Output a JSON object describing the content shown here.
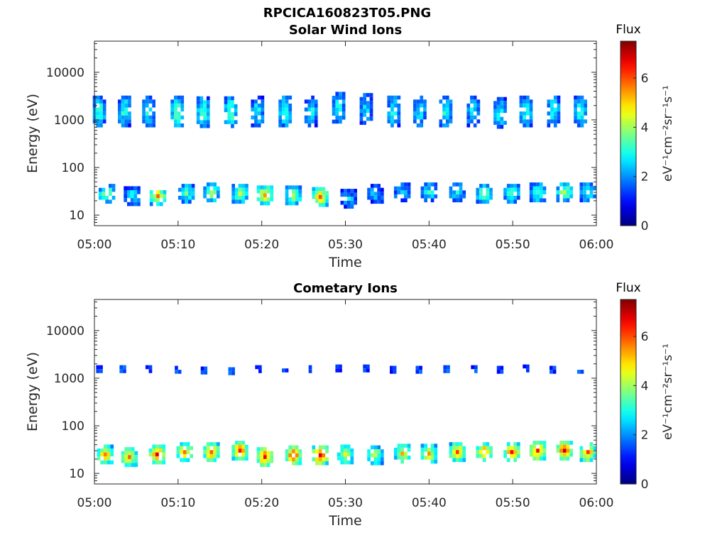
{
  "figure": {
    "title": "RPCICA160823T05.PNG"
  },
  "chart_data": [
    {
      "type": "heatmap",
      "title": "Solar Wind Ions",
      "xlabel": "Time",
      "ylabel": "Energy (eV)",
      "x_ticks": [
        "05:00",
        "05:10",
        "05:20",
        "05:30",
        "05:40",
        "05:50",
        "06:00"
      ],
      "x_range_minutes": [
        0,
        60
      ],
      "yscale": "log",
      "y_ticks": [
        10,
        100,
        1000,
        10000
      ],
      "y_tick_labels": [
        "10",
        "100",
        "1000",
        "10000"
      ],
      "ylim": [
        6,
        45000
      ],
      "colorbar": {
        "title": "Flux",
        "label": "eV⁻¹cm⁻²sr⁻¹s⁻¹",
        "ticks": [
          0,
          2,
          4,
          6
        ],
        "range": [
          0,
          7.5
        ],
        "colormap": "jet"
      },
      "blobs": [
        {
          "t": 0.6,
          "e": 1500,
          "flux": 3.2
        },
        {
          "t": 3.6,
          "e": 1500,
          "flux": 3.2
        },
        {
          "t": 6.5,
          "e": 1500,
          "flux": 3.0
        },
        {
          "t": 9.9,
          "e": 1500,
          "flux": 3.6
        },
        {
          "t": 13.0,
          "e": 1450,
          "flux": 3.6
        },
        {
          "t": 16.3,
          "e": 1450,
          "flux": 3.6
        },
        {
          "t": 19.5,
          "e": 1500,
          "flux": 3.0
        },
        {
          "t": 22.8,
          "e": 1500,
          "flux": 3.4
        },
        {
          "t": 25.9,
          "e": 1500,
          "flux": 3.0
        },
        {
          "t": 29.2,
          "e": 1800,
          "flux": 3.0
        },
        {
          "t": 32.5,
          "e": 1700,
          "flux": 2.6
        },
        {
          "t": 35.8,
          "e": 1500,
          "flux": 3.2
        },
        {
          "t": 38.9,
          "e": 1500,
          "flux": 3.0
        },
        {
          "t": 42.0,
          "e": 1500,
          "flux": 3.2
        },
        {
          "t": 45.3,
          "e": 1500,
          "flux": 3.0
        },
        {
          "t": 48.5,
          "e": 1400,
          "flux": 3.0
        },
        {
          "t": 51.6,
          "e": 1500,
          "flux": 3.2
        },
        {
          "t": 54.9,
          "e": 1500,
          "flux": 3.2
        },
        {
          "t": 58.1,
          "e": 1500,
          "flux": 3.2
        },
        {
          "t": 1.5,
          "e": 28,
          "flux": 3.8
        },
        {
          "t": 4.5,
          "e": 25,
          "flux": 2.8
        },
        {
          "t": 7.6,
          "e": 25,
          "flux": 5.2
        },
        {
          "t": 11.0,
          "e": 28,
          "flux": 3.4
        },
        {
          "t": 14.0,
          "e": 30,
          "flux": 4.0
        },
        {
          "t": 17.4,
          "e": 28,
          "flux": 4.0
        },
        {
          "t": 20.4,
          "e": 26,
          "flux": 5.0
        },
        {
          "t": 23.8,
          "e": 26,
          "flux": 4.2
        },
        {
          "t": 27.0,
          "e": 24,
          "flux": 5.4
        },
        {
          "t": 30.4,
          "e": 22,
          "flux": 2.4
        },
        {
          "t": 33.6,
          "e": 28,
          "flux": 2.4
        },
        {
          "t": 36.8,
          "e": 30,
          "flux": 2.6
        },
        {
          "t": 40.0,
          "e": 30,
          "flux": 3.0
        },
        {
          "t": 43.4,
          "e": 30,
          "flux": 3.0
        },
        {
          "t": 46.6,
          "e": 28,
          "flux": 3.6
        },
        {
          "t": 49.9,
          "e": 28,
          "flux": 3.4
        },
        {
          "t": 53.0,
          "e": 30,
          "flux": 3.4
        },
        {
          "t": 56.2,
          "e": 30,
          "flux": 4.0
        },
        {
          "t": 59.0,
          "e": 30,
          "flux": 3.4
        }
      ]
    },
    {
      "type": "heatmap",
      "title": "Cometary Ions",
      "xlabel": "Time",
      "ylabel": "Energy (eV)",
      "x_ticks": [
        "05:00",
        "05:10",
        "05:20",
        "05:30",
        "05:40",
        "05:50",
        "06:00"
      ],
      "x_range_minutes": [
        0,
        60
      ],
      "yscale": "log",
      "y_ticks": [
        10,
        100,
        1000,
        10000
      ],
      "y_tick_labels": [
        "10",
        "100",
        "1000",
        "10000"
      ],
      "ylim": [
        6,
        45000
      ],
      "colorbar": {
        "title": "Flux",
        "label": "eV⁻¹cm⁻²sr⁻¹s⁻¹",
        "ticks": [
          0,
          2,
          4,
          6
        ],
        "range": [
          0,
          7.5
        ],
        "colormap": "jet"
      },
      "blobs": [
        {
          "t": 0.6,
          "e": 1550,
          "flux": 2.2
        },
        {
          "t": 3.4,
          "e": 1550,
          "flux": 2.2
        },
        {
          "t": 6.5,
          "e": 1550,
          "flux": 2.2
        },
        {
          "t": 10.0,
          "e": 1500,
          "flux": 2.0
        },
        {
          "t": 13.1,
          "e": 1450,
          "flux": 2.0
        },
        {
          "t": 16.4,
          "e": 1400,
          "flux": 2.0
        },
        {
          "t": 19.6,
          "e": 1550,
          "flux": 2.0
        },
        {
          "t": 22.8,
          "e": 1600,
          "flux": 2.0
        },
        {
          "t": 26.0,
          "e": 1550,
          "flux": 2.0
        },
        {
          "t": 29.2,
          "e": 1600,
          "flux": 2.0
        },
        {
          "t": 32.5,
          "e": 1600,
          "flux": 2.0
        },
        {
          "t": 35.7,
          "e": 1500,
          "flux": 1.8
        },
        {
          "t": 38.8,
          "e": 1500,
          "flux": 2.0
        },
        {
          "t": 42.1,
          "e": 1550,
          "flux": 2.0
        },
        {
          "t": 45.4,
          "e": 1550,
          "flux": 2.0
        },
        {
          "t": 48.5,
          "e": 1500,
          "flux": 1.8
        },
        {
          "t": 51.6,
          "e": 1600,
          "flux": 2.0
        },
        {
          "t": 54.8,
          "e": 1500,
          "flux": 2.0
        },
        {
          "t": 58.1,
          "e": 1500,
          "flux": 2.0
        },
        {
          "t": 1.3,
          "e": 25,
          "flux": 5.4
        },
        {
          "t": 4.2,
          "e": 22,
          "flux": 5.2
        },
        {
          "t": 7.5,
          "e": 25,
          "flux": 6.0
        },
        {
          "t": 10.8,
          "e": 28,
          "flux": 5.4
        },
        {
          "t": 14.0,
          "e": 28,
          "flux": 5.6
        },
        {
          "t": 17.4,
          "e": 30,
          "flux": 5.8
        },
        {
          "t": 20.4,
          "e": 22,
          "flux": 6.0
        },
        {
          "t": 23.8,
          "e": 24,
          "flux": 6.2
        },
        {
          "t": 27.0,
          "e": 24,
          "flux": 6.4
        },
        {
          "t": 30.0,
          "e": 25,
          "flux": 4.6
        },
        {
          "t": 33.6,
          "e": 24,
          "flux": 4.2
        },
        {
          "t": 36.8,
          "e": 26,
          "flux": 4.8
        },
        {
          "t": 40.0,
          "e": 26,
          "flux": 4.8
        },
        {
          "t": 43.4,
          "e": 28,
          "flux": 5.4
        },
        {
          "t": 46.6,
          "e": 28,
          "flux": 5.6
        },
        {
          "t": 49.9,
          "e": 28,
          "flux": 5.8
        },
        {
          "t": 53.0,
          "e": 30,
          "flux": 6.0
        },
        {
          "t": 56.2,
          "e": 30,
          "flux": 6.2
        },
        {
          "t": 59.0,
          "e": 28,
          "flux": 5.6
        }
      ]
    }
  ]
}
